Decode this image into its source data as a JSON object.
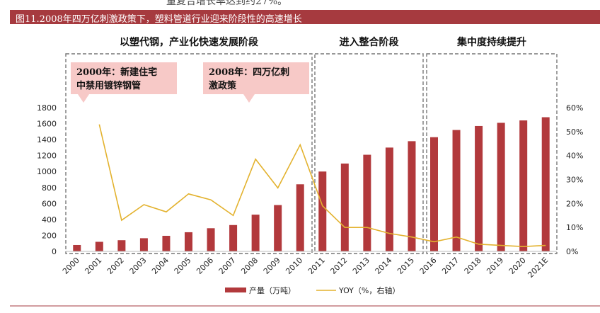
{
  "header": {
    "cut_text": "量复合增长率达到约27%。",
    "title": "图11.2008年四万亿刺激政策下，塑料管道行业迎来阶段性的高速增长"
  },
  "phases": [
    {
      "label": "以塑代钢，产业化快速发展阶段"
    },
    {
      "label": "进入整合阶段"
    },
    {
      "label": "集中度持续提升"
    }
  ],
  "notes": [
    {
      "line1": "2000年：新建住宅",
      "line2": "中禁用镀锌钢管"
    },
    {
      "line1": "2008年：四万亿刺",
      "line2": "激政策"
    }
  ],
  "colors": {
    "bar": "#b2393c",
    "line": "#e3b22e",
    "note_bg": "#f7c9c7",
    "title_bg": "#a63a3f"
  },
  "chart_data": {
    "type": "bar",
    "categories": [
      "2000",
      "2001",
      "2002",
      "2003",
      "2004",
      "2005",
      "2006",
      "2007",
      "2008",
      "2009",
      "2010",
      "2011",
      "2012",
      "2013",
      "2014",
      "2015",
      "2016",
      "2017",
      "2018",
      "2019",
      "2020",
      "2021E"
    ],
    "series": [
      {
        "name": "产量（万吨）",
        "type": "bar",
        "axis": "left",
        "values": [
          80,
          120,
          140,
          165,
          195,
          240,
          290,
          330,
          460,
          580,
          840,
          1000,
          1100,
          1210,
          1300,
          1380,
          1430,
          1520,
          1570,
          1610,
          1640,
          1680
        ]
      },
      {
        "name": "YOY（%，右轴）",
        "type": "line",
        "axis": "right",
        "values": [
          null,
          53,
          13,
          19.5,
          16.5,
          24,
          21.5,
          15,
          38.5,
          26.5,
          44.5,
          19,
          10,
          10,
          7.5,
          6,
          4,
          6,
          3,
          2.5,
          2,
          2.5
        ]
      }
    ],
    "ylim": [
      0,
      1800
    ],
    "yticks": [
      0,
      200,
      400,
      600,
      800,
      1000,
      1200,
      1400,
      1600,
      1800
    ],
    "y2lim": [
      0,
      60
    ],
    "y2ticks": [
      "0%",
      "10%",
      "20%",
      "30%",
      "40%",
      "50%",
      "60%"
    ],
    "legend_position": "bottom"
  }
}
